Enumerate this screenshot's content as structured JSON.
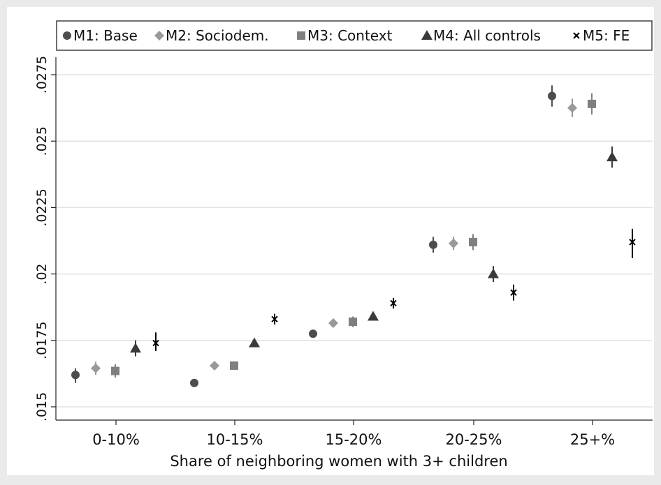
{
  "chart_data": {
    "type": "scatter",
    "title": "",
    "xlabel": "Share of neighboring women with 3+ children",
    "ylabel": "",
    "categories": [
      "0-10%",
      "10-15%",
      "15-20%",
      "20-25%",
      "25+%"
    ],
    "ylim": [
      0.0145,
      0.028
    ],
    "yticks": [
      {
        "value": 0.015,
        "label": ".015"
      },
      {
        "value": 0.0175,
        "label": ".0175"
      },
      {
        "value": 0.02,
        "label": ".02"
      },
      {
        "value": 0.0225,
        "label": ".0225"
      },
      {
        "value": 0.025,
        "label": ".025"
      },
      {
        "value": 0.0275,
        "label": ".0275"
      }
    ],
    "grid": true,
    "legend_position": "top",
    "series": [
      {
        "name": "M1: Base",
        "marker": "circle",
        "color": "#4d4d4d",
        "values": [
          0.0162,
          0.0159,
          0.01775,
          0.0211,
          0.0267
        ],
        "ci_low": [
          0.0159,
          0.0158,
          0.01765,
          0.0208,
          0.0263
        ],
        "ci_high": [
          0.01645,
          0.016,
          0.01785,
          0.0214,
          0.0271
        ]
      },
      {
        "name": "M2: Sociodem.",
        "marker": "diamond",
        "color": "#999999",
        "values": [
          0.01645,
          0.01655,
          0.01815,
          0.02115,
          0.02625
        ],
        "ci_low": [
          0.0162,
          0.01645,
          0.0181,
          0.0209,
          0.0259
        ],
        "ci_high": [
          0.0167,
          0.01665,
          0.0182,
          0.0214,
          0.0266
        ]
      },
      {
        "name": "M3: Context",
        "marker": "square",
        "color": "#7f7f7f",
        "values": [
          0.01635,
          0.01655,
          0.0182,
          0.0212,
          0.0264
        ],
        "ci_low": [
          0.0161,
          0.01645,
          0.018,
          0.0209,
          0.026
        ],
        "ci_high": [
          0.0166,
          0.01665,
          0.0184,
          0.0215,
          0.0268
        ]
      },
      {
        "name": "M4: All controls",
        "marker": "triangle",
        "color": "#3a3a3a",
        "values": [
          0.0172,
          0.0174,
          0.0184,
          0.02,
          0.0244
        ],
        "ci_low": [
          0.0169,
          0.01725,
          0.01825,
          0.0197,
          0.024
        ],
        "ci_high": [
          0.0175,
          0.01755,
          0.01855,
          0.0203,
          0.0248
        ]
      },
      {
        "name": "M5: FE",
        "marker": "x",
        "color": "#000000",
        "values": [
          0.0174,
          0.0183,
          0.0189,
          0.0193,
          0.0212
        ],
        "ci_low": [
          0.0171,
          0.0181,
          0.0187,
          0.019,
          0.0206
        ],
        "ci_high": [
          0.0178,
          0.0185,
          0.0191,
          0.0196,
          0.0217
        ]
      }
    ]
  }
}
